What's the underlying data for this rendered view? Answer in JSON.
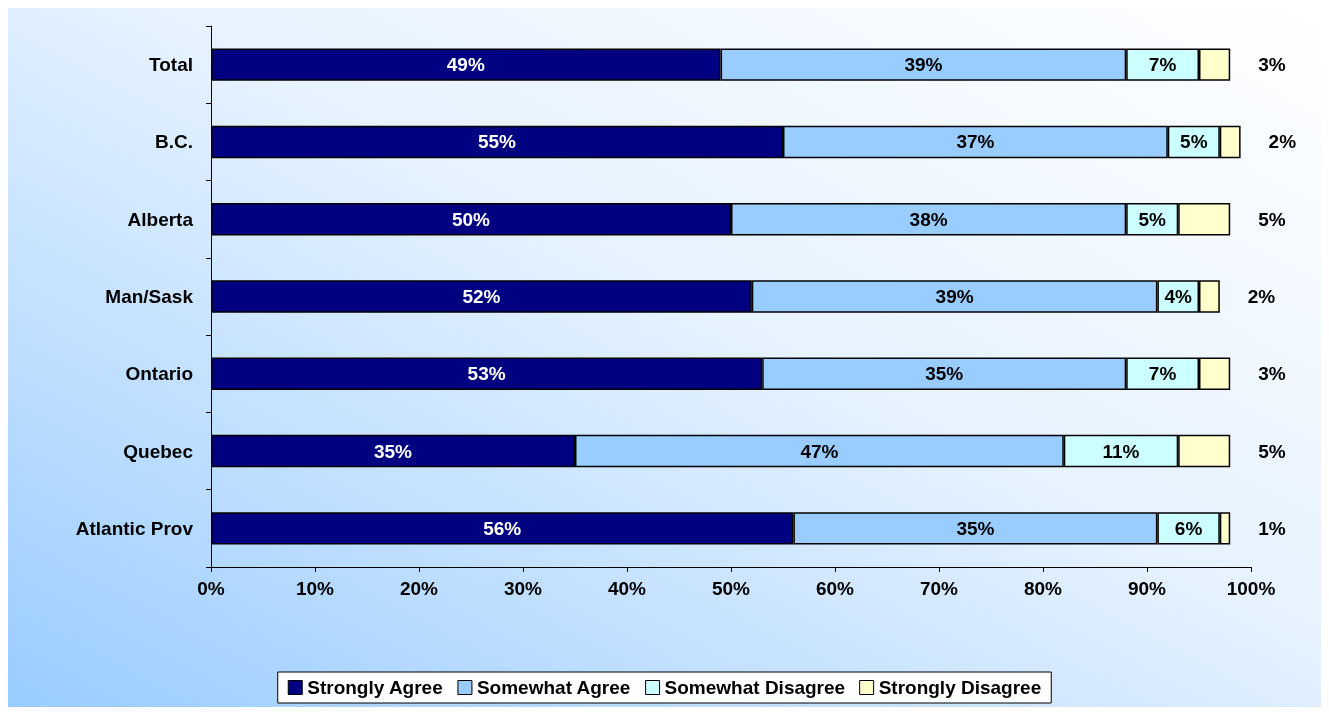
{
  "chart_data": {
    "type": "bar",
    "orientation": "horizontal",
    "stacked": true,
    "legend": "bottom",
    "grid": false,
    "categories": [
      "Total",
      "B.C.",
      "Alberta",
      "Man/Sask",
      "Ontario",
      "Quebec",
      "Atlantic Prov"
    ],
    "series": [
      {
        "name": "Strongly Agree",
        "color": "#000080",
        "values": [
          49,
          55,
          50,
          52,
          53,
          35,
          56
        ],
        "value_labels": [
          "49%",
          "55%",
          "50%",
          "52%",
          "53%",
          "35%",
          "56%"
        ]
      },
      {
        "name": "Somewhat Agree",
        "color": "#99ccff",
        "values": [
          39,
          37,
          38,
          39,
          35,
          47,
          35
        ],
        "value_labels": [
          "39%",
          "37%",
          "38%",
          "39%",
          "35%",
          "47%",
          "35%"
        ]
      },
      {
        "name": "Somewhat Disagree",
        "color": "#ccffff",
        "values": [
          7,
          5,
          5,
          4,
          7,
          11,
          6
        ],
        "value_labels": [
          "7%",
          "5%",
          "5%",
          "4%",
          "7%",
          "11%",
          "6%"
        ]
      },
      {
        "name": "Strongly Disagree",
        "color": "#ffffcc",
        "values": [
          3,
          2,
          5,
          2,
          3,
          5,
          1
        ],
        "value_labels": [
          "3%",
          "2%",
          "5%",
          "2%",
          "3%",
          "5%",
          "1%"
        ]
      }
    ],
    "xlim": [
      0,
      100
    ],
    "xticks": [
      {
        "value": 0,
        "label": "0%"
      },
      {
        "value": 10,
        "label": "10%"
      },
      {
        "value": 20,
        "label": "20%"
      },
      {
        "value": 30,
        "label": "30%"
      },
      {
        "value": 40,
        "label": "40%"
      },
      {
        "value": 50,
        "label": "50%"
      },
      {
        "value": 60,
        "label": "60%"
      },
      {
        "value": 70,
        "label": "70%"
      },
      {
        "value": 80,
        "label": "80%"
      },
      {
        "value": 90,
        "label": "90%"
      },
      {
        "value": 100,
        "label": "100%"
      }
    ]
  }
}
